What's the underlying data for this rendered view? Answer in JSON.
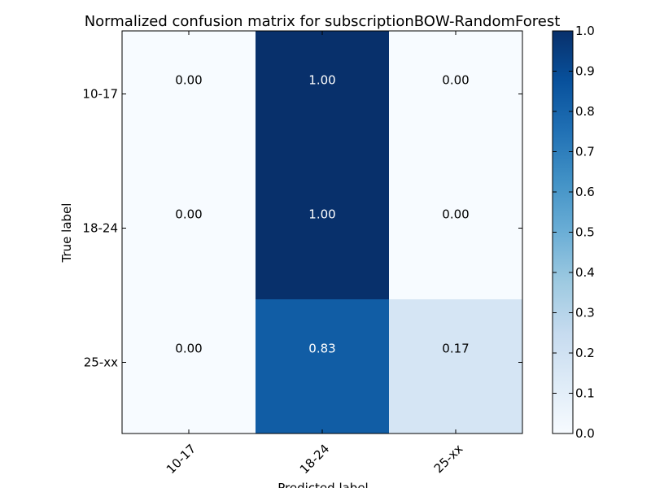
{
  "chart_data": {
    "type": "heatmap",
    "title": "Normalized confusion matrix for subscriptionBOW-RandomForest",
    "xlabel": "Predicted label",
    "ylabel": "True label",
    "x_categories": [
      "10-17",
      "18-24",
      "25-xx"
    ],
    "y_categories": [
      "10-17",
      "18-24",
      "25-xx"
    ],
    "values": [
      [
        0.0,
        1.0,
        0.0
      ],
      [
        0.0,
        1.0,
        0.0
      ],
      [
        0.0,
        0.83,
        0.17
      ]
    ],
    "cell_labels": [
      [
        "0.00",
        "1.00",
        "0.00"
      ],
      [
        "0.00",
        "1.00",
        "0.00"
      ],
      [
        "0.00",
        "0.83",
        "0.17"
      ]
    ],
    "colormap": "Blues",
    "colorbar": {
      "range": [
        0.0,
        1.0
      ],
      "ticks": [
        "0.0",
        "0.1",
        "0.2",
        "0.3",
        "0.4",
        "0.5",
        "0.6",
        "0.7",
        "0.8",
        "0.9",
        "1.0"
      ]
    },
    "grid": false
  }
}
